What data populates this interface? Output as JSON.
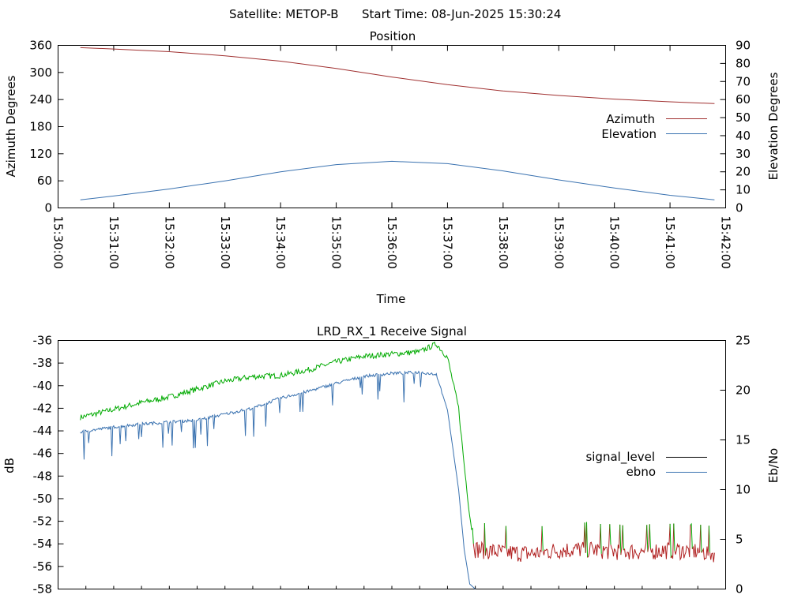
{
  "header": {
    "satellite_label": "Satellite: METOP-B",
    "start_time_label": "Start Time: 08-Jun-2025 15:30:24"
  },
  "colors": {
    "azimuth": "#a03030",
    "elevation": "#3a72b0",
    "signal_level_legend": "#000000",
    "signal_level_high": "#00aa00",
    "signal_level_low": "#b02020",
    "ebno": "#3a72b0"
  },
  "chart_data": [
    {
      "type": "line",
      "title": "Position",
      "xlabel": "Time",
      "ylabel": "Azimuth Degrees",
      "y2label": "Elevation Degrees",
      "xlim": [
        "15:30:00",
        "15:42:00"
      ],
      "ylim": [
        0,
        360
      ],
      "y2lim": [
        0,
        90
      ],
      "x_ticks": [
        "15:30:00",
        "15:31:00",
        "15:32:00",
        "15:33:00",
        "15:34:00",
        "15:35:00",
        "15:36:00",
        "15:37:00",
        "15:38:00",
        "15:39:00",
        "15:40:00",
        "15:41:00",
        "15:42:00"
      ],
      "y_ticks": [
        "0",
        "60",
        "120",
        "180",
        "240",
        "300",
        "360"
      ],
      "y2_ticks": [
        "0",
        "10",
        "20",
        "30",
        "40",
        "50",
        "60",
        "70",
        "80",
        "90"
      ],
      "legend_position": "right",
      "series": [
        {
          "name": "Azimuth",
          "axis": "y",
          "x": [
            "15:30:24",
            "15:31:00",
            "15:32:00",
            "15:33:00",
            "15:34:00",
            "15:35:00",
            "15:36:00",
            "15:37:00",
            "15:38:00",
            "15:39:00",
            "15:40:00",
            "15:41:00",
            "15:41:48"
          ],
          "values": [
            355,
            352,
            346,
            337,
            325,
            309,
            290,
            273,
            259,
            249,
            241,
            235,
            231
          ]
        },
        {
          "name": "Elevation",
          "axis": "y2",
          "x": [
            "15:30:24",
            "15:31:00",
            "15:32:00",
            "15:33:00",
            "15:34:00",
            "15:35:00",
            "15:36:00",
            "15:37:00",
            "15:38:00",
            "15:39:00",
            "15:40:00",
            "15:41:00",
            "15:41:48"
          ],
          "values": [
            4.5,
            6.6,
            10.5,
            15.0,
            20.0,
            24.0,
            25.8,
            24.5,
            20.5,
            15.5,
            11.0,
            7.0,
            4.5
          ]
        }
      ]
    },
    {
      "type": "line",
      "title": "LRD_RX_1 Receive Signal",
      "xlabel": "",
      "ylabel": "dB",
      "y2label": "Eb/No",
      "xlim": [
        "15:30:00",
        "15:42:00"
      ],
      "ylim": [
        -58,
        -36
      ],
      "y2lim": [
        0,
        25
      ],
      "y_ticks": [
        "-58",
        "-56",
        "-54",
        "-52",
        "-50",
        "-48",
        "-46",
        "-44",
        "-42",
        "-40",
        "-38",
        "-36"
      ],
      "y2_ticks": [
        "0",
        "5",
        "10",
        "15",
        "20",
        "25"
      ],
      "legend_position": "right",
      "series": [
        {
          "name": "signal_level",
          "axis": "y",
          "x": [
            "15:30:24",
            "15:31:00",
            "15:31:30",
            "15:32:00",
            "15:32:30",
            "15:33:00",
            "15:33:30",
            "15:34:00",
            "15:34:30",
            "15:35:00",
            "15:35:30",
            "15:36:00",
            "15:36:30",
            "15:36:48",
            "15:37:00",
            "15:37:12",
            "15:37:18",
            "15:37:24",
            "15:37:30",
            "15:38:00",
            "15:38:30",
            "15:39:00",
            "15:39:30",
            "15:40:00",
            "15:40:30",
            "15:41:00",
            "15:41:30",
            "15:41:48"
          ],
          "values": [
            -42.8,
            -42.1,
            -41.5,
            -41.0,
            -40.3,
            -39.6,
            -39.2,
            -39.1,
            -38.6,
            -37.9,
            -37.4,
            -37.2,
            -37.0,
            -36.3,
            -37.5,
            -42.0,
            -47.0,
            -51.5,
            -54.7,
            -55.0,
            -55.1,
            -54.8,
            -54.7,
            -54.9,
            -54.9,
            -54.8,
            -54.9,
            -55.1
          ]
        },
        {
          "name": "ebno",
          "axis": "y2",
          "x": [
            "15:30:24",
            "15:31:00",
            "15:31:30",
            "15:32:00",
            "15:32:30",
            "15:33:00",
            "15:33:30",
            "15:34:00",
            "15:34:30",
            "15:35:00",
            "15:35:30",
            "15:36:00",
            "15:36:30",
            "15:36:48",
            "15:37:00",
            "15:37:12",
            "15:37:18",
            "15:37:24",
            "15:37:30"
          ],
          "values": [
            15.8,
            16.3,
            16.6,
            16.8,
            17.0,
            17.6,
            18.2,
            19.2,
            19.9,
            20.7,
            21.4,
            21.7,
            21.8,
            21.6,
            18.0,
            10.0,
            4.0,
            0.5,
            0.0
          ]
        }
      ]
    }
  ]
}
